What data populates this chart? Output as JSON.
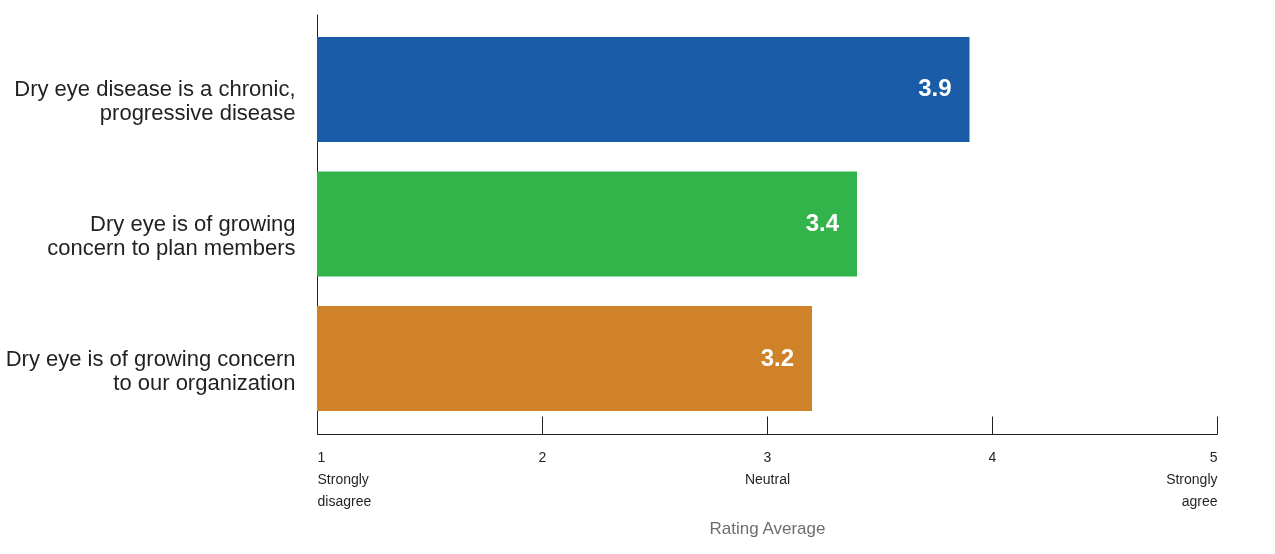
{
  "chart_data": {
    "type": "bar",
    "orientation": "horizontal",
    "categories": [
      "Dry eye disease is a chronic,\nprogressive disease",
      "Dry eye is of growing\nconcern to plan members",
      "Dry eye is of growing concern\nto our organization"
    ],
    "values": [
      3.9,
      3.4,
      3.2
    ],
    "colors": [
      "#1a5ca8",
      "#33b44a",
      "#cf8228"
    ],
    "xlim": [
      1,
      5
    ],
    "xticks": [
      {
        "value": 1,
        "label": "1\nStrongly\ndisagree"
      },
      2,
      {
        "value": 3,
        "label": "3\nNeutral"
      },
      4,
      {
        "value": 5,
        "label": "5\nStrongly\nagree"
      }
    ],
    "xlabel": "Rating Average",
    "data_labels": true,
    "grid": false
  }
}
